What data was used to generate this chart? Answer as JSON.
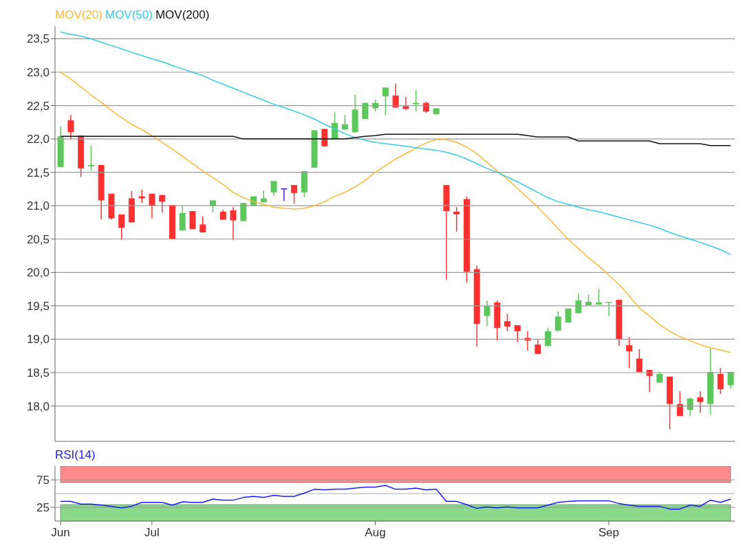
{
  "chart_data": [
    {
      "type": "candlestick",
      "categories": [
        null,
        null,
        null,
        null,
        null,
        null,
        null,
        null,
        null,
        null,
        null,
        null,
        null,
        null,
        null,
        null,
        null,
        null,
        null,
        null,
        null,
        null,
        null,
        null,
        null,
        null,
        null,
        null,
        null,
        null,
        null,
        null,
        null,
        null,
        null,
        null,
        null,
        null,
        null,
        null,
        null,
        null,
        null,
        null,
        null,
        null,
        null,
        null,
        null,
        null,
        null,
        null,
        null,
        null,
        null,
        null,
        null,
        null,
        null,
        null,
        null,
        null,
        null,
        null,
        null,
        null,
        null
      ],
      "ohlc": [
        [
          21.58,
          22.19,
          21.58,
          22.04
        ],
        [
          22.28,
          22.36,
          21.99,
          22.1
        ],
        [
          22.05,
          22.05,
          21.43,
          21.56
        ],
        [
          21.59,
          21.9,
          21.52,
          21.61
        ],
        [
          21.61,
          21.61,
          20.79,
          21.08
        ],
        [
          21.18,
          21.18,
          20.79,
          20.81
        ],
        [
          20.87,
          20.87,
          20.49,
          20.67
        ],
        [
          21.11,
          21.22,
          20.75,
          20.75
        ],
        [
          21.14,
          21.24,
          21.04,
          21.11
        ],
        [
          21.18,
          21.18,
          20.81,
          21.0
        ],
        [
          21.16,
          21.16,
          20.9,
          21.06
        ],
        [
          21.01,
          21.01,
          20.5,
          20.5
        ],
        [
          20.63,
          21.0,
          20.63,
          20.89
        ],
        [
          20.92,
          20.92,
          20.65,
          20.65
        ],
        [
          20.72,
          20.84,
          20.6,
          20.6
        ],
        [
          21.0,
          21.08,
          20.9,
          21.08
        ],
        [
          20.91,
          20.94,
          20.79,
          20.79
        ],
        [
          20.93,
          20.98,
          20.49,
          20.78
        ],
        [
          20.77,
          21.04,
          20.77,
          21.04
        ],
        [
          21.0,
          21.14,
          21.0,
          21.14
        ],
        [
          21.05,
          21.23,
          21.05,
          21.11
        ],
        [
          21.2,
          21.37,
          21.15,
          21.37
        ],
        [
          21.26,
          21.26,
          21.07,
          21.26
        ],
        [
          21.31,
          21.31,
          21.03,
          21.19
        ],
        [
          21.2,
          21.52,
          21.13,
          21.52
        ],
        [
          21.57,
          22.13,
          21.57,
          22.13
        ],
        [
          22.15,
          22.15,
          21.89,
          21.89
        ],
        [
          21.99,
          22.4,
          21.99,
          22.24
        ],
        [
          22.14,
          22.36,
          22.14,
          22.22
        ],
        [
          22.1,
          22.66,
          22.1,
          22.44
        ],
        [
          22.3,
          22.54,
          22.3,
          22.54
        ],
        [
          22.46,
          22.59,
          22.41,
          22.54
        ],
        [
          22.64,
          22.77,
          22.36,
          22.77
        ],
        [
          22.65,
          22.83,
          22.47,
          22.47
        ],
        [
          22.49,
          22.63,
          22.43,
          22.45
        ],
        [
          22.52,
          22.73,
          22.41,
          22.54
        ],
        [
          22.54,
          22.56,
          22.39,
          22.41
        ],
        [
          22.37,
          22.46,
          22.37,
          22.46
        ],
        [
          21.31,
          21.31,
          19.89,
          20.92
        ],
        [
          20.91,
          20.98,
          20.61,
          20.87
        ],
        [
          21.1,
          21.14,
          19.85,
          20.01
        ],
        [
          20.05,
          20.1,
          18.89,
          19.23
        ],
        [
          19.35,
          19.58,
          19.2,
          19.5
        ],
        [
          19.55,
          19.58,
          18.98,
          19.17
        ],
        [
          19.27,
          19.38,
          19.12,
          19.19
        ],
        [
          19.21,
          19.21,
          18.96,
          19.12
        ],
        [
          19.02,
          19.12,
          18.83,
          18.98
        ],
        [
          18.92,
          19.0,
          18.78,
          18.78
        ],
        [
          18.9,
          19.17,
          18.9,
          19.12
        ],
        [
          19.13,
          19.42,
          19.12,
          19.34
        ],
        [
          19.25,
          19.46,
          19.25,
          19.46
        ],
        [
          19.39,
          19.69,
          19.39,
          19.58
        ],
        [
          19.51,
          19.67,
          19.51,
          19.56
        ],
        [
          19.52,
          19.75,
          19.52,
          19.55
        ],
        [
          19.55,
          19.56,
          19.35,
          19.56
        ],
        [
          19.59,
          19.59,
          18.9,
          19.0
        ],
        [
          18.91,
          19.03,
          18.57,
          18.82
        ],
        [
          18.71,
          18.85,
          18.51,
          18.51
        ],
        [
          18.54,
          18.54,
          18.21,
          18.45
        ],
        [
          18.35,
          18.51,
          18.35,
          18.48
        ],
        [
          18.44,
          18.44,
          17.65,
          18.03
        ],
        [
          18.03,
          18.22,
          17.85,
          17.85
        ],
        [
          17.94,
          18.13,
          17.85,
          18.11
        ],
        [
          18.13,
          18.22,
          17.9,
          18.06
        ],
        [
          18.03,
          18.87,
          17.87,
          18.51
        ],
        [
          18.48,
          18.57,
          18.18,
          18.25
        ],
        [
          18.31,
          18.51,
          18.26,
          18.51
        ]
      ],
      "colors": [
        "#5cc85c",
        "#ff3030",
        "#ff3030",
        "#5cc85c",
        "#ff3030",
        "#ff3030",
        "#ff3030",
        "#ff3030",
        "#ff3030",
        "#ff3030",
        "#ff3030",
        "#ff3030",
        "#5cc85c",
        "#ff3030",
        "#ff3030",
        "#5cc85c",
        "#ff3030",
        "#ff3030",
        "#5cc85c",
        "#5cc85c",
        "#5cc85c",
        "#5cc85c",
        "#4422cc",
        "#ff3030",
        "#5cc85c",
        "#5cc85c",
        "#ff3030",
        "#5cc85c",
        "#5cc85c",
        "#5cc85c",
        "#5cc85c",
        "#5cc85c",
        "#5cc85c",
        "#ff3030",
        "#ff3030",
        "#5cc85c",
        "#ff3030",
        "#5cc85c",
        "#ff3030",
        "#ff3030",
        "#ff3030",
        "#ff3030",
        "#5cc85c",
        "#ff3030",
        "#ff3030",
        "#ff3030",
        "#ff3030",
        "#ff3030",
        "#5cc85c",
        "#5cc85c",
        "#5cc85c",
        "#5cc85c",
        "#5cc85c",
        "#5cc85c",
        "#5cc85c",
        "#ff3030",
        "#ff3030",
        "#ff3030",
        "#ff3030",
        "#5cc85c",
        "#ff3030",
        "#ff3030",
        "#5cc85c",
        "#ff3030",
        "#5cc85c",
        "#ff3030",
        "#5cc85c"
      ],
      "series": [
        {
          "type": "line",
          "name": "MOV(20)",
          "color": "#ffb833",
          "values": [
            23.0,
            22.9,
            22.78,
            22.66,
            22.55,
            22.43,
            22.32,
            22.22,
            22.14,
            22.05,
            21.95,
            21.85,
            21.74,
            21.63,
            21.52,
            21.42,
            21.32,
            21.2,
            21.12,
            21.06,
            21.02,
            20.98,
            20.96,
            20.95,
            20.96,
            21.0,
            21.06,
            21.14,
            21.2,
            21.28,
            21.38,
            21.5,
            21.6,
            21.7,
            21.78,
            21.86,
            21.94,
            21.99,
            21.99,
            21.95,
            21.88,
            21.78,
            21.65,
            21.52,
            21.4,
            21.26,
            21.12,
            20.98,
            20.82,
            20.66,
            20.5,
            20.36,
            20.22,
            20.1,
            19.96,
            19.82,
            19.65,
            19.47,
            19.35,
            19.22,
            19.12,
            19.04,
            18.98,
            18.92,
            18.87,
            18.84,
            18.8
          ]
        },
        {
          "type": "line",
          "name": "MOV(50)",
          "color": "#33ccee",
          "values": [
            23.6,
            23.57,
            23.54,
            23.5,
            23.45,
            23.4,
            23.35,
            23.3,
            23.25,
            23.2,
            23.16,
            23.1,
            23.05,
            23.0,
            22.95,
            22.88,
            22.82,
            22.76,
            22.7,
            22.64,
            22.58,
            22.52,
            22.47,
            22.42,
            22.36,
            22.3,
            22.22,
            22.15,
            22.08,
            22.02,
            21.98,
            21.95,
            21.93,
            21.91,
            21.89,
            21.87,
            21.85,
            21.83,
            21.8,
            21.76,
            21.7,
            21.63,
            21.56,
            21.5,
            21.43,
            21.36,
            21.28,
            21.2,
            21.12,
            21.06,
            21.02,
            20.98,
            20.94,
            20.91,
            20.87,
            20.83,
            20.79,
            20.75,
            20.71,
            20.66,
            20.6,
            20.55,
            20.5,
            20.45,
            20.4,
            20.34,
            20.27
          ]
        },
        {
          "type": "line",
          "name": "MOV(200)",
          "color": "#111111",
          "values": [
            22.04,
            22.04,
            22.04,
            22.04,
            22.04,
            22.04,
            22.04,
            22.04,
            22.04,
            22.04,
            22.04,
            22.04,
            22.04,
            22.04,
            22.04,
            22.04,
            22.04,
            22.04,
            22.0,
            22.0,
            22.0,
            22.0,
            22.0,
            22.0,
            22.0,
            22.0,
            22.0,
            22.0,
            22.0,
            22.02,
            22.04,
            22.05,
            22.07,
            22.07,
            22.07,
            22.07,
            22.07,
            22.07,
            22.07,
            22.07,
            22.07,
            22.07,
            22.07,
            22.07,
            22.07,
            22.07,
            22.05,
            22.03,
            22.03,
            22.03,
            22.03,
            21.97,
            21.97,
            21.97,
            21.97,
            21.97,
            21.97,
            21.97,
            21.97,
            21.93,
            21.93,
            21.93,
            21.93,
            21.93,
            21.9,
            21.9,
            21.9
          ]
        }
      ],
      "ylim": [
        17.47,
        23.69
      ],
      "yticks": [
        {
          "value": 18,
          "label": "18,0"
        },
        {
          "value": 18.5,
          "label": "18,5"
        },
        {
          "value": 19,
          "label": "19,0"
        },
        {
          "value": 19.5,
          "label": "19,5"
        },
        {
          "value": 20,
          "label": "20,0"
        },
        {
          "value": 20.5,
          "label": "20,5"
        },
        {
          "value": 21,
          "label": "21,0"
        },
        {
          "value": 21.5,
          "label": "21,5"
        },
        {
          "value": 22,
          "label": "22,0"
        },
        {
          "value": 22.5,
          "label": "22,5"
        },
        {
          "value": 23,
          "label": "23,0"
        },
        {
          "value": 23.5,
          "label": "23,5"
        }
      ],
      "grid": "y",
      "legend": "top left",
      "tick_labels": "y"
    },
    {
      "type": "line",
      "categories": [
        "Jun",
        null,
        null,
        null,
        null,
        null,
        null,
        null,
        null,
        "Jul",
        null,
        null,
        null,
        null,
        null,
        null,
        null,
        null,
        null,
        null,
        null,
        null,
        null,
        null,
        null,
        null,
        null,
        null,
        null,
        null,
        null,
        "Aug",
        null,
        null,
        null,
        null,
        null,
        null,
        null,
        null,
        null,
        null,
        null,
        null,
        null,
        null,
        null,
        null,
        null,
        null,
        null,
        null,
        null,
        null,
        "Sep",
        null,
        null,
        null,
        null,
        null,
        null,
        null,
        null,
        null,
        null,
        null,
        null
      ],
      "series": [
        {
          "name": "RSI(14)",
          "color": "#1a1aff",
          "values": [
            36,
            36,
            31,
            31,
            29,
            27,
            24,
            27,
            34,
            34,
            34,
            29,
            35,
            34,
            34,
            40,
            38,
            38,
            43,
            45,
            43,
            47,
            45,
            45,
            51,
            58,
            57,
            58,
            58,
            60,
            62,
            62,
            65,
            58,
            58,
            60,
            57,
            58,
            36,
            36,
            30,
            23,
            26,
            24,
            26,
            24,
            24,
            24,
            29,
            34,
            36,
            37,
            37,
            37,
            37,
            32,
            29,
            27,
            27,
            27,
            22,
            22,
            29,
            27,
            38,
            34,
            40
          ]
        }
      ],
      "ylim": [
        0,
        100
      ],
      "yticks": [
        25,
        75
      ],
      "grid": "y",
      "legend": "top left",
      "bands": [
        {
          "axis": "y",
          "from": 70,
          "to": 100,
          "color": "#ff8a8a"
        },
        {
          "axis": "y",
          "from": 0,
          "to": 30,
          "color": "#8ad88a"
        }
      ],
      "ref_lines": [
        {
          "axis": "y",
          "value": 50,
          "color": "#aaaaaa"
        }
      ]
    }
  ]
}
